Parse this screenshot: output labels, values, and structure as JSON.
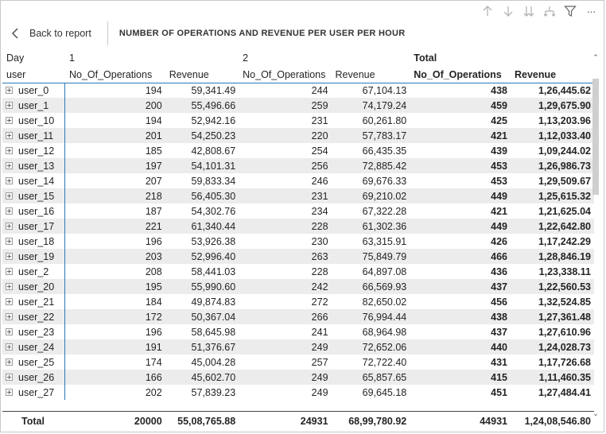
{
  "toolbar": {
    "icons": [
      "arrow-up-icon",
      "arrow-down-icon",
      "double-arrow-down-icon",
      "expand-hierarchy-icon",
      "filter-icon",
      "more-options-icon"
    ],
    "more_label": "···"
  },
  "header": {
    "back_label": "Back to report",
    "title": "NUMBER OF OPERATIONS AND REVENUE PER USER PER HOUR"
  },
  "table": {
    "row_header_top": "Day",
    "row_header_bottom": "user",
    "groups": [
      "1",
      "2",
      "Total"
    ],
    "measures": [
      "No_Of_Operations",
      "Revenue",
      "No_Of_Operations",
      "Revenue",
      "No_Of_Operations",
      "Revenue"
    ],
    "rows": [
      {
        "user": "user_0",
        "v": [
          "194",
          "59,341.49",
          "244",
          "67,104.13",
          "438",
          "1,26,445.62"
        ]
      },
      {
        "user": "user_1",
        "v": [
          "200",
          "55,496.66",
          "259",
          "74,179.24",
          "459",
          "1,29,675.90"
        ]
      },
      {
        "user": "user_10",
        "v": [
          "194",
          "52,942.16",
          "231",
          "60,261.80",
          "425",
          "1,13,203.96"
        ]
      },
      {
        "user": "user_11",
        "v": [
          "201",
          "54,250.23",
          "220",
          "57,783.17",
          "421",
          "1,12,033.40"
        ]
      },
      {
        "user": "user_12",
        "v": [
          "185",
          "42,808.67",
          "254",
          "66,435.35",
          "439",
          "1,09,244.02"
        ]
      },
      {
        "user": "user_13",
        "v": [
          "197",
          "54,101.31",
          "256",
          "72,885.42",
          "453",
          "1,26,986.73"
        ]
      },
      {
        "user": "user_14",
        "v": [
          "207",
          "59,833.34",
          "246",
          "69,676.33",
          "453",
          "1,29,509.67"
        ]
      },
      {
        "user": "user_15",
        "v": [
          "218",
          "56,405.30",
          "231",
          "69,210.02",
          "449",
          "1,25,615.32"
        ]
      },
      {
        "user": "user_16",
        "v": [
          "187",
          "54,302.76",
          "234",
          "67,322.28",
          "421",
          "1,21,625.04"
        ]
      },
      {
        "user": "user_17",
        "v": [
          "221",
          "61,340.44",
          "228",
          "61,302.36",
          "449",
          "1,22,642.80"
        ]
      },
      {
        "user": "user_18",
        "v": [
          "196",
          "53,926.38",
          "230",
          "63,315.91",
          "426",
          "1,17,242.29"
        ]
      },
      {
        "user": "user_19",
        "v": [
          "203",
          "52,996.40",
          "263",
          "75,849.79",
          "466",
          "1,28,846.19"
        ]
      },
      {
        "user": "user_2",
        "v": [
          "208",
          "58,441.03",
          "228",
          "64,897.08",
          "436",
          "1,23,338.11"
        ]
      },
      {
        "user": "user_20",
        "v": [
          "195",
          "55,990.60",
          "242",
          "66,569.93",
          "437",
          "1,22,560.53"
        ]
      },
      {
        "user": "user_21",
        "v": [
          "184",
          "49,874.83",
          "272",
          "82,650.02",
          "456",
          "1,32,524.85"
        ]
      },
      {
        "user": "user_22",
        "v": [
          "172",
          "50,367.04",
          "266",
          "76,994.44",
          "438",
          "1,27,361.48"
        ]
      },
      {
        "user": "user_23",
        "v": [
          "196",
          "58,645.98",
          "241",
          "68,964.98",
          "437",
          "1,27,610.96"
        ]
      },
      {
        "user": "user_24",
        "v": [
          "191",
          "51,376.67",
          "249",
          "72,652.06",
          "440",
          "1,24,028.73"
        ]
      },
      {
        "user": "user_25",
        "v": [
          "174",
          "45,004.28",
          "257",
          "72,722.40",
          "431",
          "1,17,726.68"
        ]
      },
      {
        "user": "user_26",
        "v": [
          "166",
          "45,602.70",
          "249",
          "65,857.65",
          "415",
          "1,11,460.35"
        ]
      },
      {
        "user": "user_27",
        "v": [
          "202",
          "57,839.23",
          "249",
          "69,645.18",
          "451",
          "1,27,484.41"
        ]
      }
    ],
    "total": {
      "label": "Total",
      "v": [
        "20000",
        "55,08,765.88",
        "24931",
        "68,99,780.92",
        "44931",
        "1,24,08,546.80"
      ]
    }
  }
}
